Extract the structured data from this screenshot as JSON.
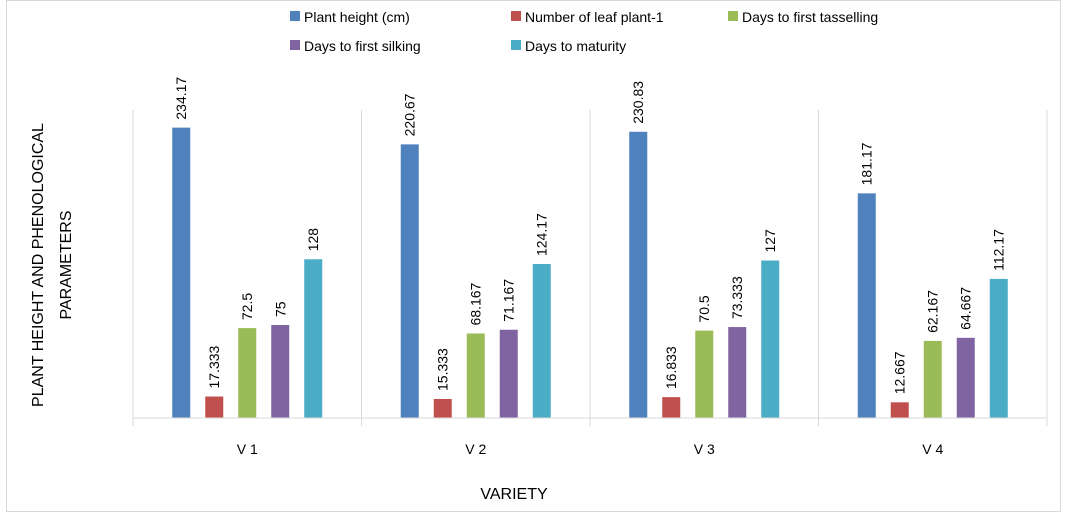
{
  "chart_data": {
    "type": "bar",
    "title": "",
    "xlabel": "VARIETY",
    "ylabel_lines": [
      "PLANT HEIGHT AND PHENOLOGICAL",
      "PARAMETERS"
    ],
    "categories": [
      "V 1",
      "V 2",
      "V 3",
      "V 4"
    ],
    "ylim": [
      0,
      250
    ],
    "grid": false,
    "legend_position": "top",
    "series": [
      {
        "name": "Plant height (cm)",
        "color": "#4f81bd",
        "values": [
          234.17,
          220.67,
          230.83,
          181.17
        ],
        "labels": [
          "234.17",
          "220.67",
          "230.83",
          "181.17"
        ]
      },
      {
        "name": "Number of leaf plant-1",
        "color": "#c0504d",
        "values": [
          17.333,
          15.333,
          16.833,
          12.667
        ],
        "labels": [
          "17.333",
          "15.333",
          "16.833",
          "12.667"
        ]
      },
      {
        "name": "Days to first tasselling",
        "color": "#9bbb59",
        "values": [
          72.5,
          68.167,
          70.5,
          62.167
        ],
        "labels": [
          "72.5",
          "68.167",
          "70.5",
          "62.167"
        ]
      },
      {
        "name": "Days to first silking",
        "color": "#8064a2",
        "values": [
          75,
          71.167,
          73.333,
          64.667
        ],
        "labels": [
          "75",
          "71.167",
          "73.333",
          "64.667"
        ]
      },
      {
        "name": "Days to maturity",
        "color": "#4bacc6",
        "values": [
          128,
          124.17,
          127,
          112.17
        ],
        "labels": [
          "128",
          "124.17",
          "127",
          "112.17"
        ]
      }
    ]
  }
}
